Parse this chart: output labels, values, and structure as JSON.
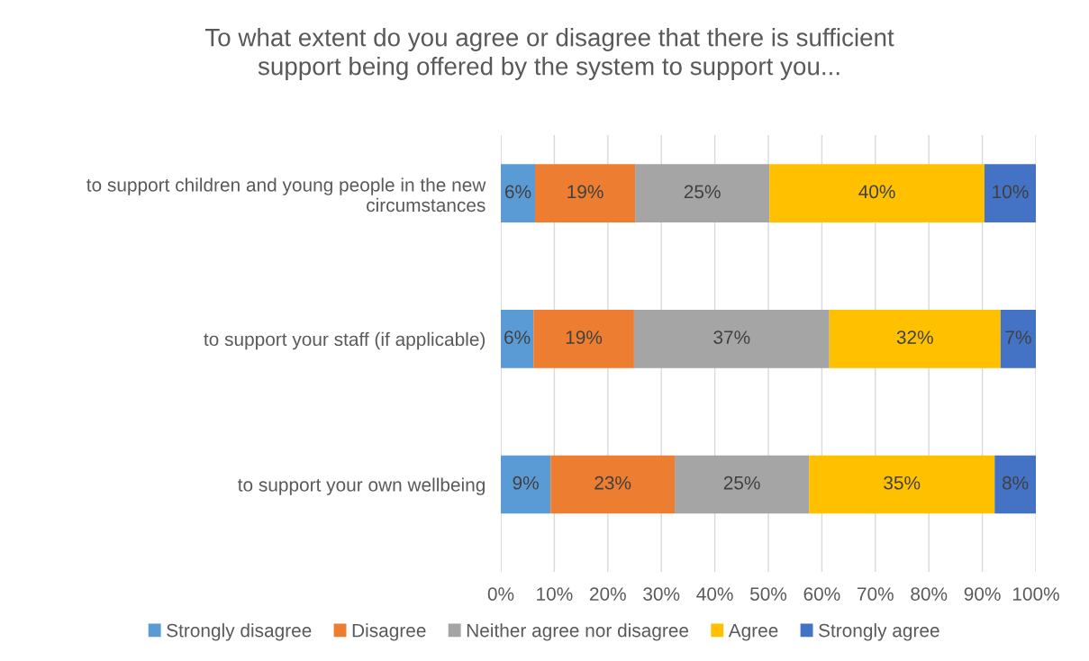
{
  "chart_data": {
    "type": "bar",
    "orientation": "horizontal",
    "stacked": true,
    "title": "To what extent do you agree or disagree that there is sufficient\nsupport being offered by the system to support you...",
    "categories": [
      "to support children and young people in the new circumstances",
      "to support your staff (if applicable)",
      "to support your own wellbeing"
    ],
    "series": [
      {
        "name": "Strongly disagree",
        "color": "#5b9bd5",
        "values": [
          6.4,
          6.1,
          9.3
        ],
        "value_labels": [
          "6%",
          "6%",
          "9%"
        ]
      },
      {
        "name": "Disagree",
        "color": "#ed7d31",
        "values": [
          18.7,
          18.8,
          23.2
        ],
        "value_labels": [
          "19%",
          "19%",
          "23%"
        ]
      },
      {
        "name": "Neither agree nor disagree",
        "color": "#a5a5a5",
        "values": [
          25.1,
          36.5,
          25.1
        ],
        "value_labels": [
          "25%",
          "37%",
          "25%"
        ]
      },
      {
        "name": "Agree",
        "color": "#ffc000",
        "values": [
          40.2,
          32.0,
          34.7
        ],
        "value_labels": [
          "40%",
          "32%",
          "35%"
        ]
      },
      {
        "name": "Strongly agree",
        "color": "#4472c4",
        "values": [
          9.6,
          6.6,
          7.7
        ],
        "value_labels": [
          "10%",
          "7%",
          "8%"
        ]
      }
    ],
    "xlim": [
      0,
      100
    ],
    "xticks": [
      {
        "value": 0,
        "label": "0%"
      },
      {
        "value": 10,
        "label": "10%"
      },
      {
        "value": 20,
        "label": "20%"
      },
      {
        "value": 30,
        "label": "30%"
      },
      {
        "value": 40,
        "label": "40%"
      },
      {
        "value": 50,
        "label": "50%"
      },
      {
        "value": 60,
        "label": "60%"
      },
      {
        "value": 70,
        "label": "70%"
      },
      {
        "value": 80,
        "label": "80%"
      },
      {
        "value": 90,
        "label": "90%"
      },
      {
        "value": 100,
        "label": "100%"
      }
    ],
    "grid": "x",
    "legend": "bottom"
  }
}
